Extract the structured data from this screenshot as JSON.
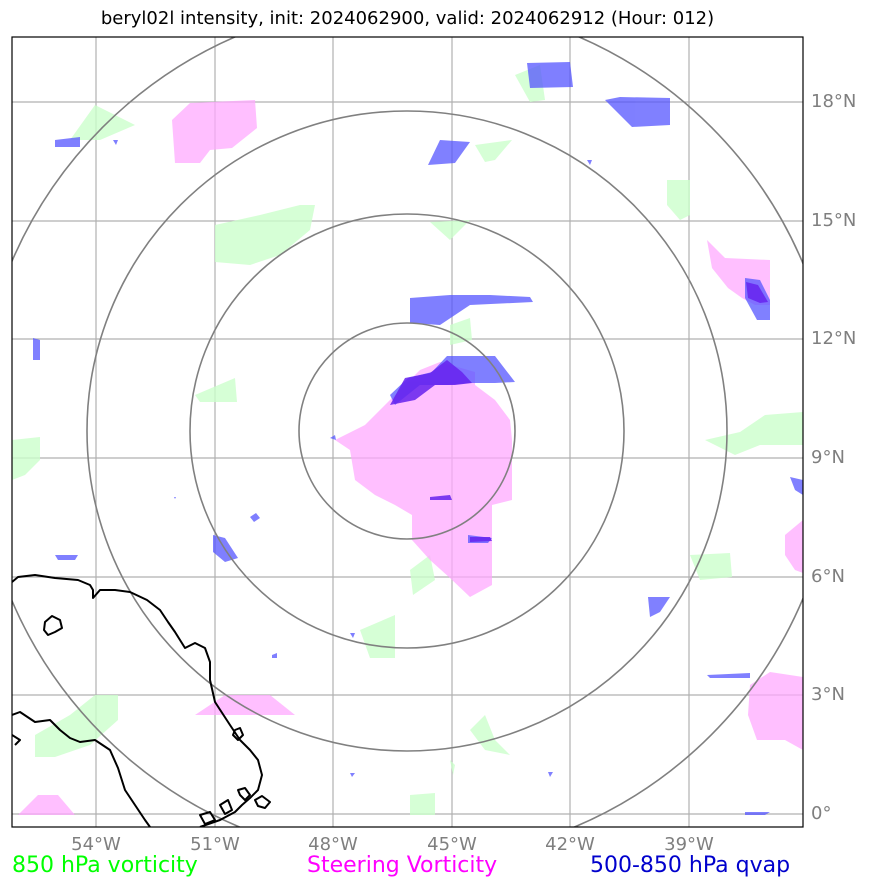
{
  "title": "beryl02l intensity, init: 2024062900, valid: 2024062912 (Hour: 012)",
  "x_ticks": [
    "54°W",
    "51°W",
    "48°W",
    "45°W",
    "42°W",
    "39°W"
  ],
  "y_ticks": [
    "18°N",
    "15°N",
    "12°N",
    "9°N",
    "6°N",
    "3°N",
    "0°"
  ],
  "legend": {
    "low_level": "850 hPa vorticity",
    "steering": "Steering Vorticity",
    "qvap": "500-850 hPa qvap"
  },
  "colors": {
    "low_level": "#00ff00",
    "steering": "#ff00ff",
    "qvap": "#0000cc",
    "grid": "#b0b0b0",
    "range_rings": "#808080",
    "coastline": "#000000"
  },
  "map": {
    "lon_range": [
      "56°W",
      "36°W"
    ],
    "lat_range": [
      "0.5°S",
      "19.5°N"
    ],
    "storm_center": {
      "lon": -46.3,
      "lat": 9.7
    },
    "range_rings": 4
  }
}
